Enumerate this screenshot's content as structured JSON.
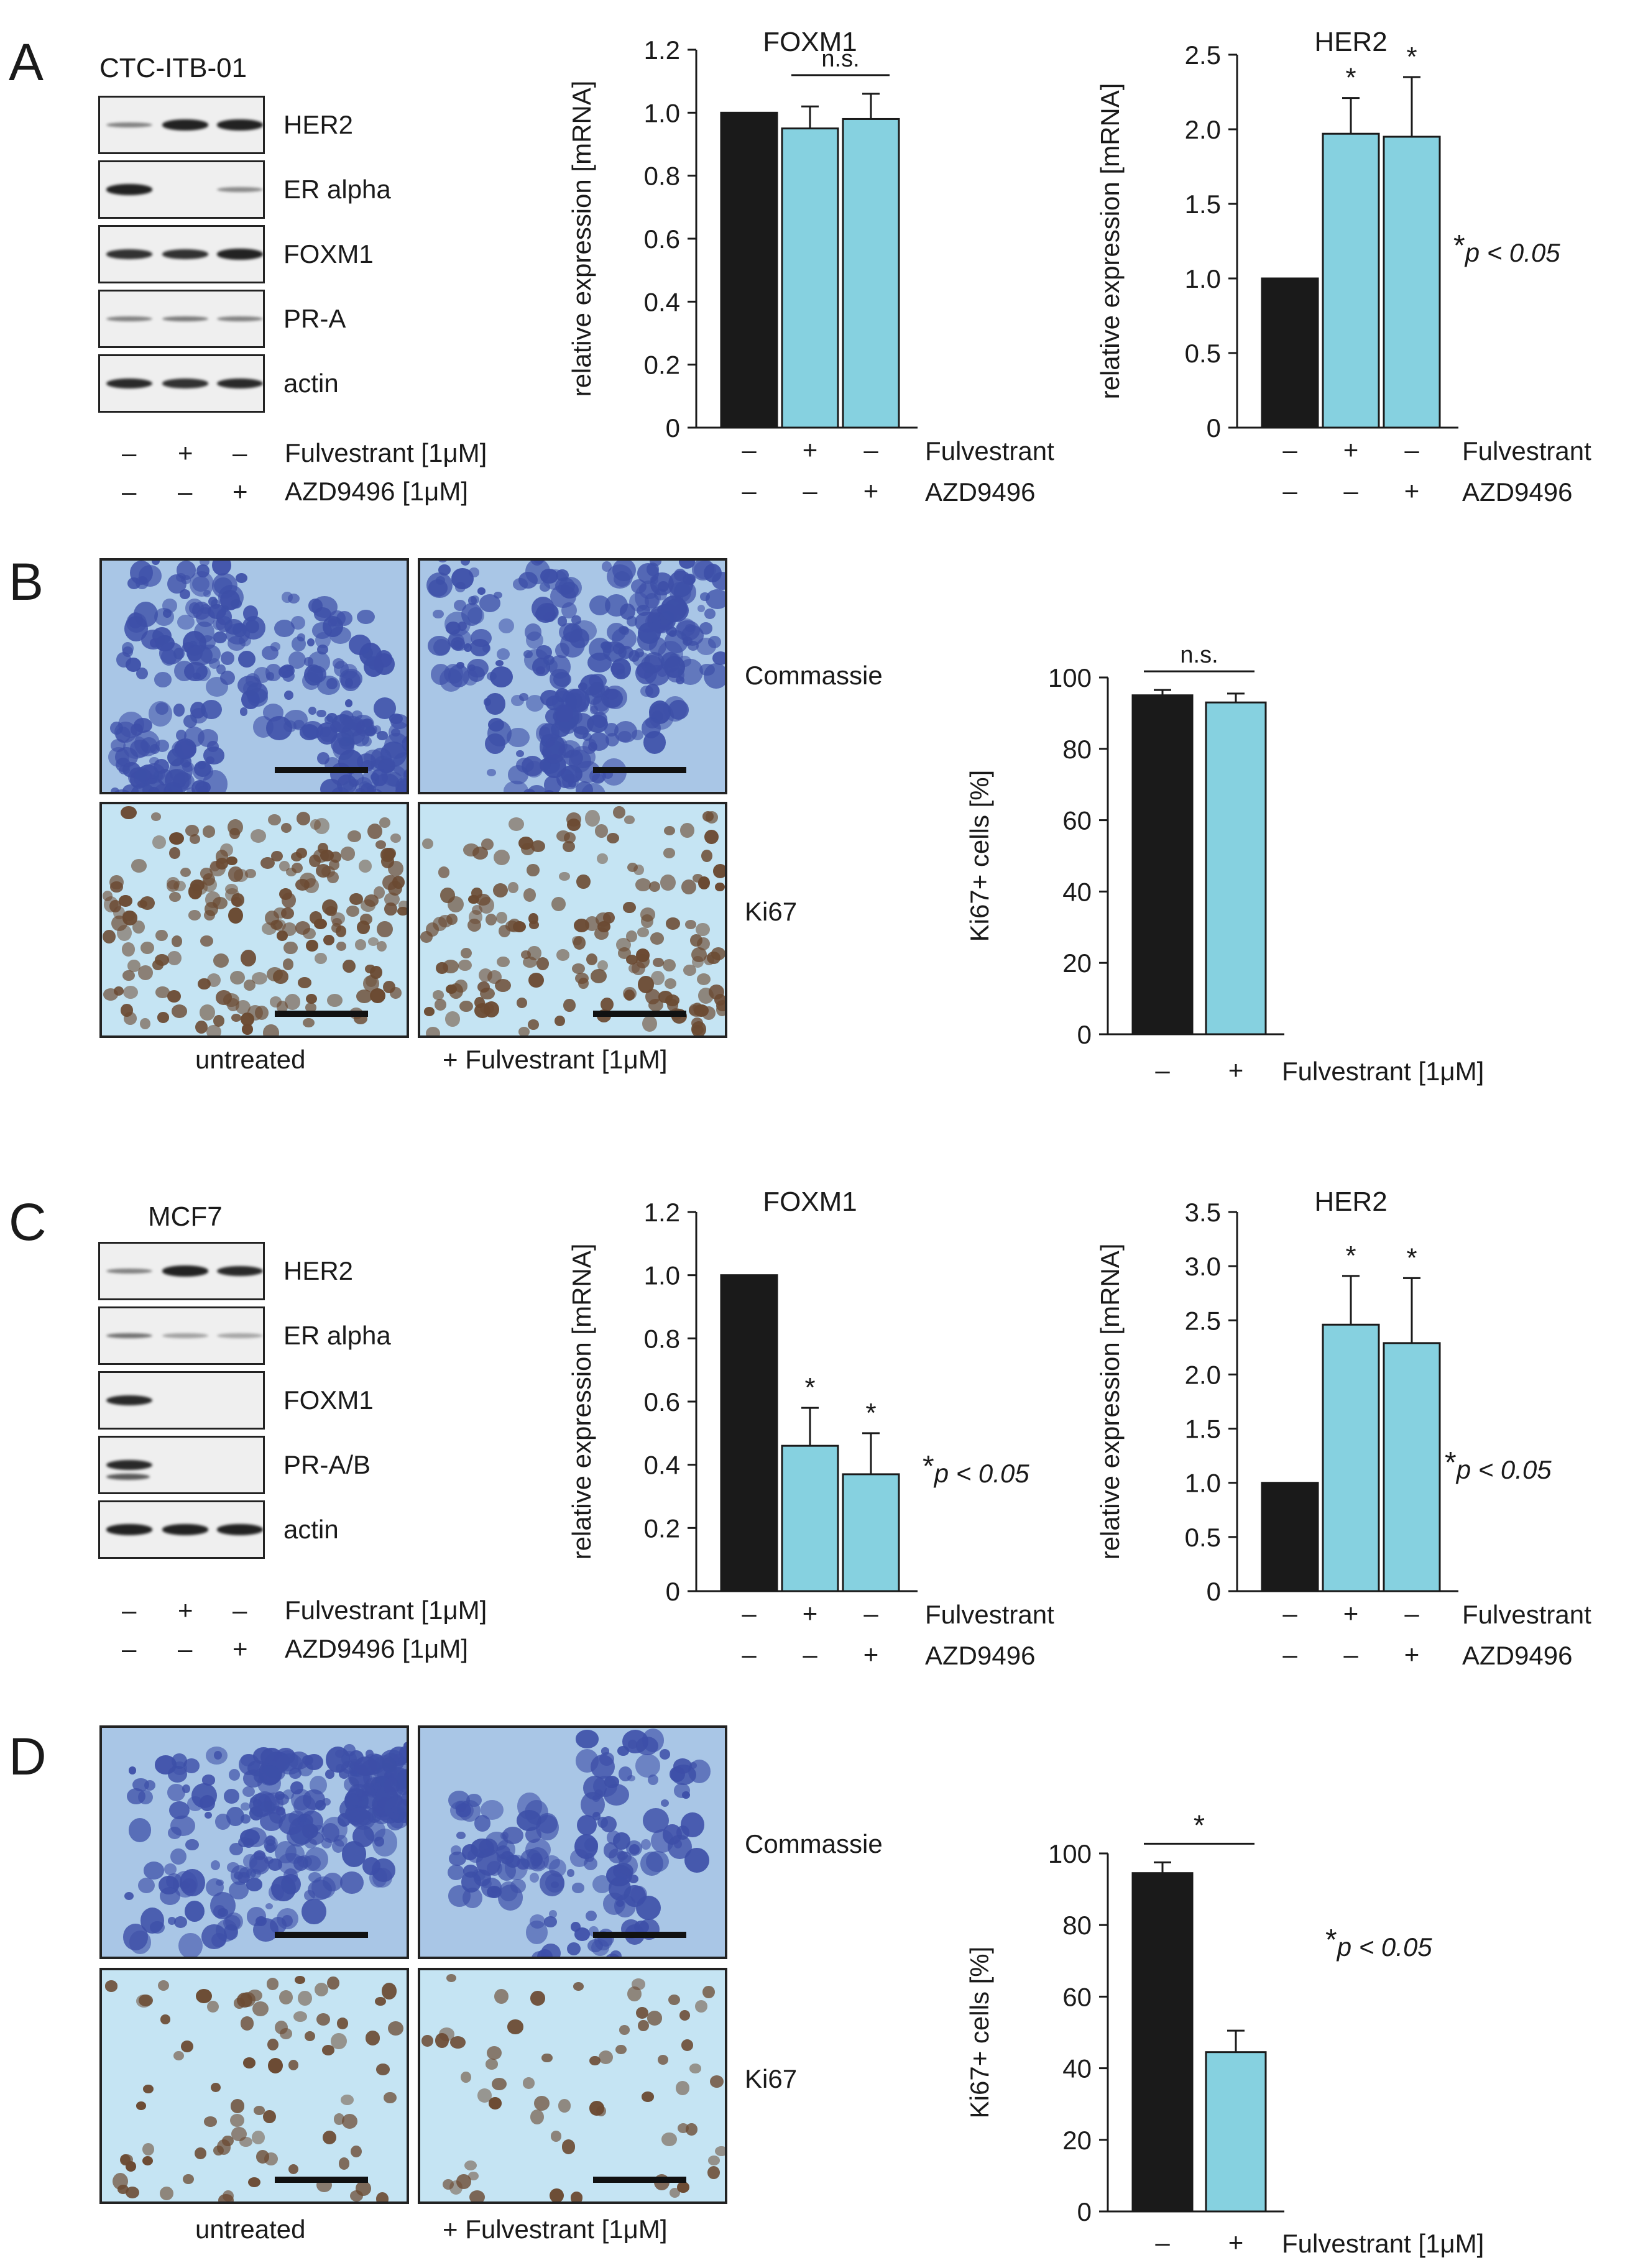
{
  "panels": {
    "A": {
      "letter": "A",
      "cell_line": "CTC-ITB-01",
      "blot_labels": [
        "HER2",
        "ER alpha",
        "FOXM1",
        "PR-A",
        "actin"
      ],
      "treatment_rows": [
        {
          "signs": [
            "–",
            "+",
            "–"
          ],
          "label": "Fulvestrant [1μM]"
        },
        {
          "signs": [
            "–",
            "–",
            "+"
          ],
          "label": "AZD9496 [1μM]"
        }
      ]
    },
    "B": {
      "letter": "B",
      "stain_labels": [
        "Commassie",
        "Ki67"
      ],
      "column_labels": [
        "untreated",
        "+ Fulvestrant [1μM]"
      ]
    },
    "C": {
      "letter": "C",
      "cell_line": "MCF7",
      "blot_labels": [
        "HER2",
        "ER alpha",
        "FOXM1",
        "PR-A/B",
        "actin"
      ],
      "treatment_rows": [
        {
          "signs": [
            "–",
            "+",
            "–"
          ],
          "label": "Fulvestrant [1μM]"
        },
        {
          "signs": [
            "–",
            "–",
            "+"
          ],
          "label": "AZD9496 [1μM]"
        }
      ]
    },
    "D": {
      "letter": "D",
      "stain_labels": [
        "Commassie",
        "Ki67"
      ],
      "column_labels": [
        "untreated",
        "+ Fulvestrant [1μM]"
      ]
    }
  },
  "pvalue_note": {
    "star": "*",
    "text": "p < 0.05"
  },
  "colors": {
    "control": "#1a1a1a",
    "treated": "#86d1e0",
    "coomassie_bg": "#a9c6e6",
    "coomassie_cell": "#3d4fa8",
    "ki67_bg": "#c5e4f3",
    "ki67_nucleus": "#6b4a32"
  },
  "chart_data": [
    {
      "id": "A-FOXM1",
      "type": "bar",
      "title": "FOXM1",
      "xlabel": "",
      "ylabel": "relative expression [mRNA]",
      "ylim": [
        0,
        1.2
      ],
      "yticks": [
        "0",
        "0.2",
        "0.4",
        "0.6",
        "0.8",
        "1.0",
        "1.2"
      ],
      "values": [
        1.0,
        0.95,
        0.98
      ],
      "errors": [
        0,
        0.07,
        0.08
      ],
      "fill": [
        "control",
        "treated",
        "treated"
      ],
      "sig": [
        "",
        "",
        ""
      ],
      "bracket": "n.s.",
      "conditions": [
        {
          "label": "Fulvestrant",
          "signs": [
            "–",
            "+",
            "–"
          ]
        },
        {
          "label": "AZD9496",
          "signs": [
            "–",
            "–",
            "+"
          ]
        }
      ]
    },
    {
      "id": "A-HER2",
      "type": "bar",
      "title": "HER2",
      "xlabel": "",
      "ylabel": "relative expression [mRNA]",
      "ylim": [
        0,
        2.5
      ],
      "yticks": [
        "0",
        "0.5",
        "1.0",
        "1.5",
        "2.0",
        "2.5"
      ],
      "values": [
        1.0,
        1.97,
        1.95
      ],
      "errors": [
        0,
        0.24,
        0.4
      ],
      "fill": [
        "control",
        "treated",
        "treated"
      ],
      "sig": [
        "",
        "*",
        "*"
      ],
      "bracket": "",
      "conditions": [
        {
          "label": "Fulvestrant",
          "signs": [
            "–",
            "+",
            "–"
          ]
        },
        {
          "label": "AZD9496",
          "signs": [
            "–",
            "–",
            "+"
          ]
        }
      ]
    },
    {
      "id": "B-Ki67",
      "type": "bar",
      "title": "",
      "xlabel": "",
      "ylabel": "Ki67+ cells  [%]",
      "ylim": [
        0,
        100
      ],
      "yticks": [
        "0",
        "20",
        "40",
        "60",
        "80",
        "100"
      ],
      "values": [
        95,
        93
      ],
      "errors": [
        1.5,
        2.5
      ],
      "fill": [
        "control",
        "treated"
      ],
      "sig": [
        "",
        ""
      ],
      "bracket": "n.s.",
      "conditions": [
        {
          "label": "Fulvestrant [1μM]",
          "signs": [
            "–",
            "+"
          ]
        }
      ]
    },
    {
      "id": "C-FOXM1",
      "type": "bar",
      "title": "FOXM1",
      "xlabel": "",
      "ylabel": "relative expression [mRNA]",
      "ylim": [
        0,
        1.2
      ],
      "yticks": [
        "0",
        "0.2",
        "0.4",
        "0.6",
        "0.8",
        "1.0",
        "1.2"
      ],
      "values": [
        1.0,
        0.46,
        0.37
      ],
      "errors": [
        0,
        0.12,
        0.13
      ],
      "fill": [
        "control",
        "treated",
        "treated"
      ],
      "sig": [
        "",
        "*",
        "*"
      ],
      "bracket": "",
      "conditions": [
        {
          "label": "Fulvestrant",
          "signs": [
            "–",
            "+",
            "–"
          ]
        },
        {
          "label": "AZD9496",
          "signs": [
            "–",
            "–",
            "+"
          ]
        }
      ]
    },
    {
      "id": "C-HER2",
      "type": "bar",
      "title": "HER2",
      "xlabel": "",
      "ylabel": "relative expression [mRNA]",
      "ylim": [
        0,
        3.5
      ],
      "yticks": [
        "0",
        "0.5",
        "1.0",
        "1.5",
        "2.0",
        "2.5",
        "3.0",
        "3.5"
      ],
      "values": [
        1.0,
        2.46,
        2.29
      ],
      "errors": [
        0,
        0.45,
        0.6
      ],
      "fill": [
        "control",
        "treated",
        "treated"
      ],
      "sig": [
        "",
        "*",
        "*"
      ],
      "bracket": "",
      "conditions": [
        {
          "label": "Fulvestrant",
          "signs": [
            "–",
            "+",
            "–"
          ]
        },
        {
          "label": "AZD9496",
          "signs": [
            "–",
            "–",
            "+"
          ]
        }
      ]
    },
    {
      "id": "D-Ki67",
      "type": "bar",
      "title": "",
      "xlabel": "",
      "ylabel": "Ki67+ cells  [%]",
      "ylim": [
        0,
        100
      ],
      "yticks": [
        "0",
        "20",
        "40",
        "60",
        "80",
        "100"
      ],
      "values": [
        94.5,
        44.5
      ],
      "errors": [
        3,
        6
      ],
      "fill": [
        "control",
        "treated"
      ],
      "sig": [
        "",
        ""
      ],
      "bracket": "*",
      "conditions": [
        {
          "label": "Fulvestrant [1μM]",
          "signs": [
            "–",
            "+"
          ]
        }
      ]
    }
  ]
}
